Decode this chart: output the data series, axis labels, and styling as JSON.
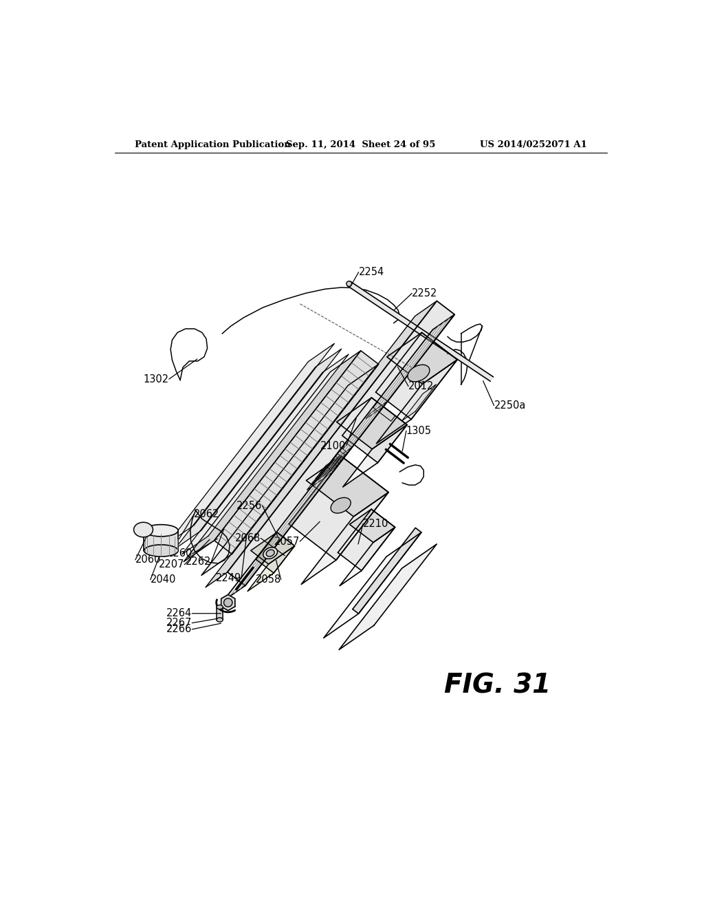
{
  "background_color": "#ffffff",
  "header_left": "Patent Application Publication",
  "header_center": "Sep. 11, 2014  Sheet 24 of 95",
  "header_right": "US 2014/0252071 A1",
  "figure_label": "FIG. 31"
}
